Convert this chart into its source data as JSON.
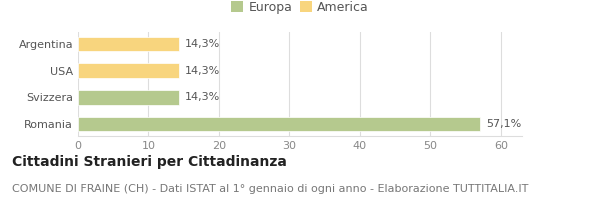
{
  "categories": [
    "Argentina",
    "USA",
    "Svizzera",
    "Romania"
  ],
  "values": [
    14.3,
    14.3,
    14.3,
    57.1
  ],
  "bar_colors": [
    "#f8d57e",
    "#f8d57e",
    "#b5c98e",
    "#b5c98e"
  ],
  "labels": [
    "14,3%",
    "14,3%",
    "14,3%",
    "57,1%"
  ],
  "legend": [
    {
      "label": "Europa",
      "color": "#b5c98e"
    },
    {
      "label": "America",
      "color": "#f8d57e"
    }
  ],
  "xlim": [
    0,
    63
  ],
  "xticks": [
    0,
    10,
    20,
    30,
    40,
    50,
    60
  ],
  "title_bold": "Cittadini Stranieri per Cittadinanza",
  "subtitle": "COMUNE DI FRAINE (CH) - Dati ISTAT al 1° gennaio di ogni anno - Elaborazione TUTTITALIA.IT",
  "background_color": "#ffffff",
  "grid_color": "#dddddd",
  "bar_height": 0.55,
  "label_fontsize": 8,
  "legend_fontsize": 9,
  "tick_fontsize": 8,
  "title_fontsize": 10,
  "subtitle_fontsize": 8
}
